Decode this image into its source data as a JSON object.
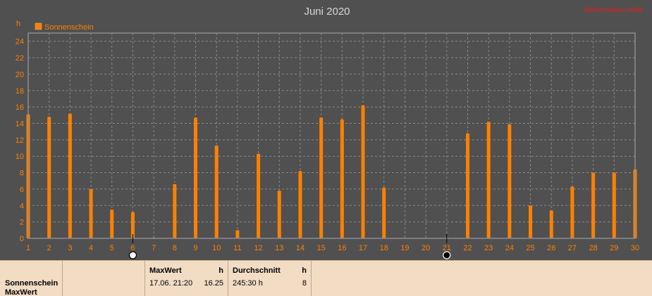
{
  "chart_data": {
    "type": "bar",
    "title": "Juni 2020",
    "ylabel": "h",
    "ylim": [
      0,
      25
    ],
    "yticks": [
      0,
      2,
      4,
      6,
      8,
      10,
      12,
      14,
      16,
      18,
      20,
      22,
      24
    ],
    "categories": [
      "1",
      "2",
      "3",
      "4",
      "5",
      "6",
      "7",
      "8",
      "9",
      "10",
      "11",
      "12",
      "13",
      "14",
      "15",
      "16",
      "17",
      "18",
      "19",
      "20",
      "21",
      "22",
      "23",
      "24",
      "25",
      "26",
      "27",
      "28",
      "29",
      "30"
    ],
    "series": [
      {
        "name": "Sonnenschein",
        "color": "#ff8000",
        "values": [
          15.1,
          14.8,
          15.2,
          6.0,
          3.5,
          3.2,
          0.1,
          6.6,
          14.7,
          11.3,
          1.0,
          10.3,
          5.8,
          8.2,
          14.7,
          14.5,
          16.2,
          6.2,
          0,
          0,
          0.1,
          12.8,
          14.2,
          13.9,
          4.0,
          3.4,
          6.3,
          8.0,
          8.0,
          8.4
        ]
      }
    ],
    "legend": "top-left",
    "grid": true,
    "moon_markers": [
      {
        "day": 6,
        "phase": "full"
      },
      {
        "day": 21,
        "phase": "new"
      }
    ]
  },
  "header": {
    "right_label": "Wetterstation Halle"
  },
  "stats": {
    "row_label_1": "Sonnenschein",
    "row_label_2": "MaxWert",
    "max": {
      "header": "MaxWert",
      "unit": "h",
      "date": "17.06.  21:20",
      "value": "16.25"
    },
    "avg": {
      "header": "Durchschnitt",
      "unit": "h",
      "total": "245:30 h",
      "value": "8"
    }
  },
  "colors": {
    "background": "#505050",
    "grid": "#8a8a8a",
    "axis_text": "#ff8000",
    "title": "#d8d8d8",
    "panel": "#f2dcc4"
  }
}
